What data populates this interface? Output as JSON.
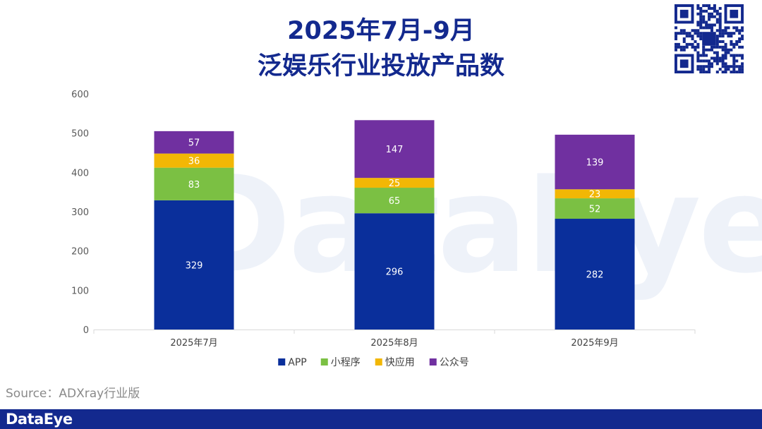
{
  "title": {
    "line1": "2025年7月-9月",
    "line2": "泛娱乐行业投放产品数"
  },
  "watermark_text": "DataEye",
  "source": "Source：ADXray行业版",
  "footer": {
    "logo": "DataEye",
    "color": "#13298e"
  },
  "chart_data": {
    "type": "bar",
    "stacked": true,
    "categories": [
      "2025年7月",
      "2025年8月",
      "2025年9月"
    ],
    "series": [
      {
        "name": "APP",
        "color": "#0a2f9b",
        "values": [
          329,
          296,
          282
        ]
      },
      {
        "name": "小程序",
        "color": "#7bc043",
        "values": [
          83,
          65,
          52
        ]
      },
      {
        "name": "快应用",
        "color": "#f2b705",
        "values": [
          36,
          25,
          23
        ]
      },
      {
        "name": "公众号",
        "color": "#7030a0",
        "values": [
          57,
          147,
          139
        ]
      }
    ],
    "ylim": [
      0,
      600
    ],
    "yticks": [
      0,
      100,
      200,
      300,
      400,
      500,
      600
    ],
    "xlabel": "",
    "ylabel": "",
    "grid": false,
    "legend": "bottom"
  }
}
